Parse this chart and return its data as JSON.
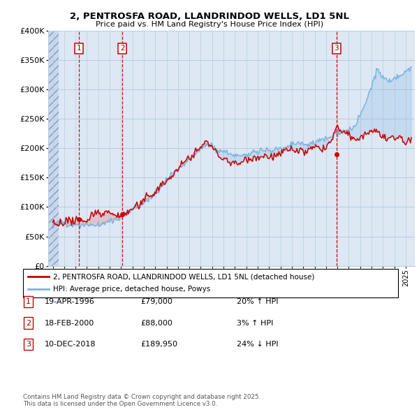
{
  "title1": "2, PENTROSFA ROAD, LLANDRINDOD WELLS, LD1 5NL",
  "title2": "Price paid vs. HM Land Registry's House Price Index (HPI)",
  "ylim": [
    0,
    400000
  ],
  "yticks": [
    0,
    50000,
    100000,
    150000,
    200000,
    250000,
    300000,
    350000,
    400000
  ],
  "ytick_labels": [
    "£0",
    "£50K",
    "£100K",
    "£150K",
    "£200K",
    "£250K",
    "£300K",
    "£350K",
    "£400K"
  ],
  "xlim_start": 1993.6,
  "xlim_end": 2025.8,
  "hatch_end": 1994.55,
  "sale_dates": [
    1996.29,
    2000.12,
    2018.92
  ],
  "sale_prices": [
    79000,
    88000,
    189950
  ],
  "sale_labels": [
    "1",
    "2",
    "3"
  ],
  "sale_pct": [
    "20% ↑ HPI",
    "3% ↑ HPI",
    "24% ↓ HPI"
  ],
  "sale_date_str": [
    "19-APR-1996",
    "18-FEB-2000",
    "10-DEC-2018"
  ],
  "property_color": "#cc0000",
  "hpi_color": "#7ab4e0",
  "bg_color": "#dde8f4",
  "grid_color": "#b8cce0",
  "hatch_bg": "#c8d8ec",
  "legend_label_property": "2, PENTROSFA ROAD, LLANDRINDOD WELLS, LD1 5NL (detached house)",
  "legend_label_hpi": "HPI: Average price, detached house, Powys",
  "footer1": "Contains HM Land Registry data © Crown copyright and database right 2025.",
  "footer2": "This data is licensed under the Open Government Licence v3.0."
}
